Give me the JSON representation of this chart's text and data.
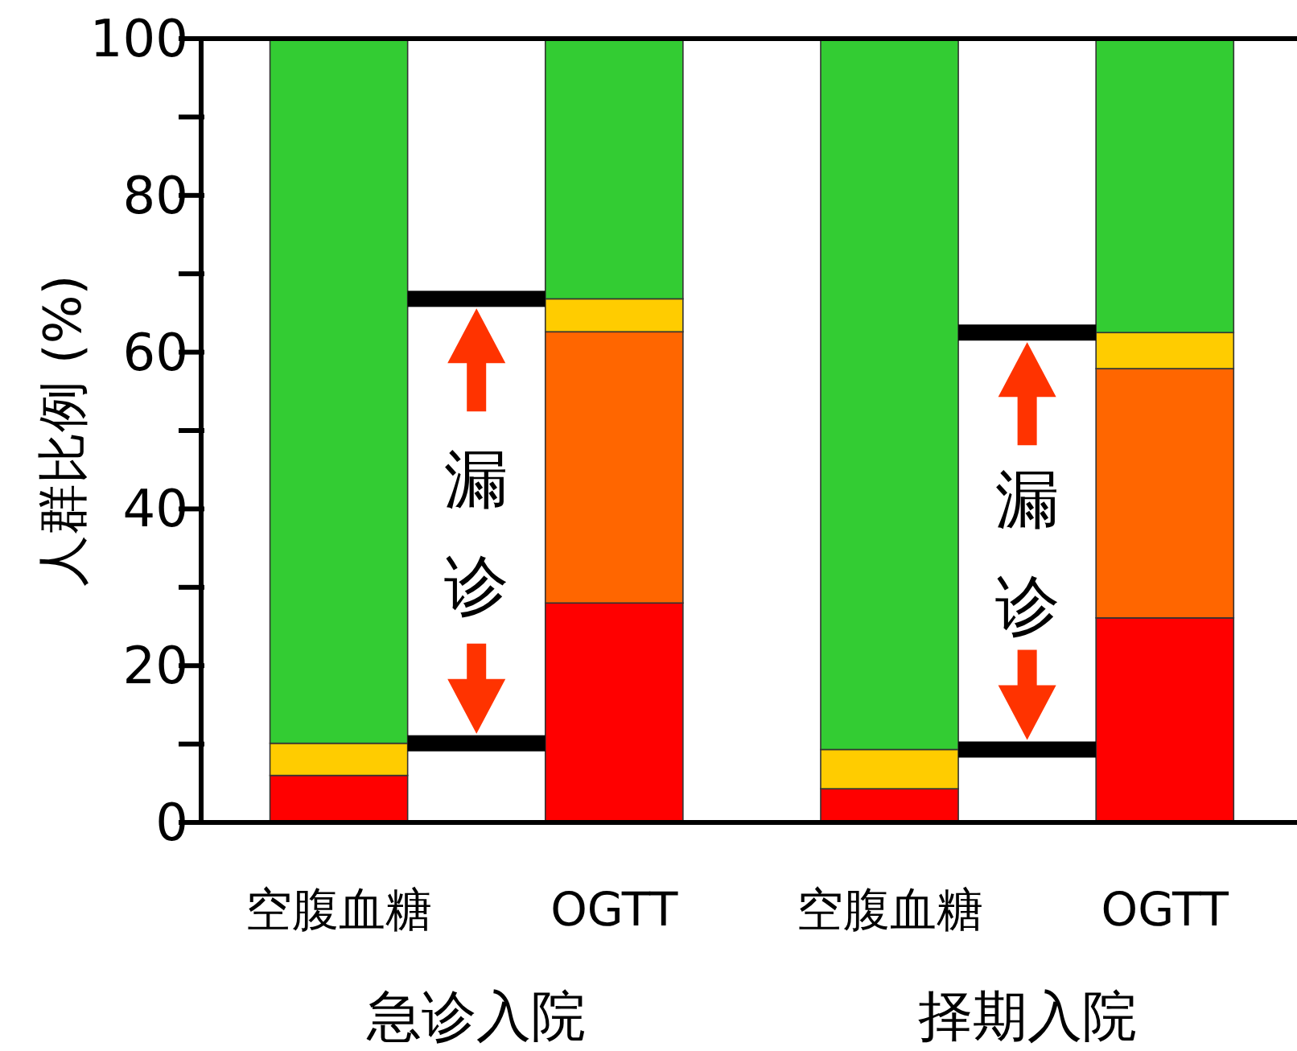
{
  "chart_data": {
    "type": "bar",
    "stacked": true,
    "categories": [
      "空腹血糖",
      "OGTT",
      "空腹血糖",
      "OGTT"
    ],
    "ylabel": "人群比例 (%)",
    "ylim": [
      0,
      100
    ],
    "yticks": [
      0,
      {
        "value": 10,
        "label": null
      },
      20,
      {
        "value": 30,
        "label": null
      },
      40,
      {
        "value": 50,
        "label": null
      },
      60,
      {
        "value": 70,
        "label": null
      },
      80,
      {
        "value": 90,
        "label": null
      },
      100
    ],
    "series": [
      {
        "color": "#ff0000",
        "values": [
          6,
          28,
          4.3,
          26.1
        ]
      },
      {
        "color": "#ff6600",
        "values": [
          0,
          34.6,
          0,
          31.8
        ]
      },
      {
        "color": "#ffcc00",
        "values": [
          4.1,
          4.2,
          5,
          4.6
        ]
      },
      {
        "color": "#33cc33",
        "values": [
          89.9,
          33.2,
          90.7,
          37.5
        ]
      }
    ],
    "annotations": [
      "漏诊",
      "漏诊",
      "急诊入院",
      "择期入院"
    ]
  }
}
